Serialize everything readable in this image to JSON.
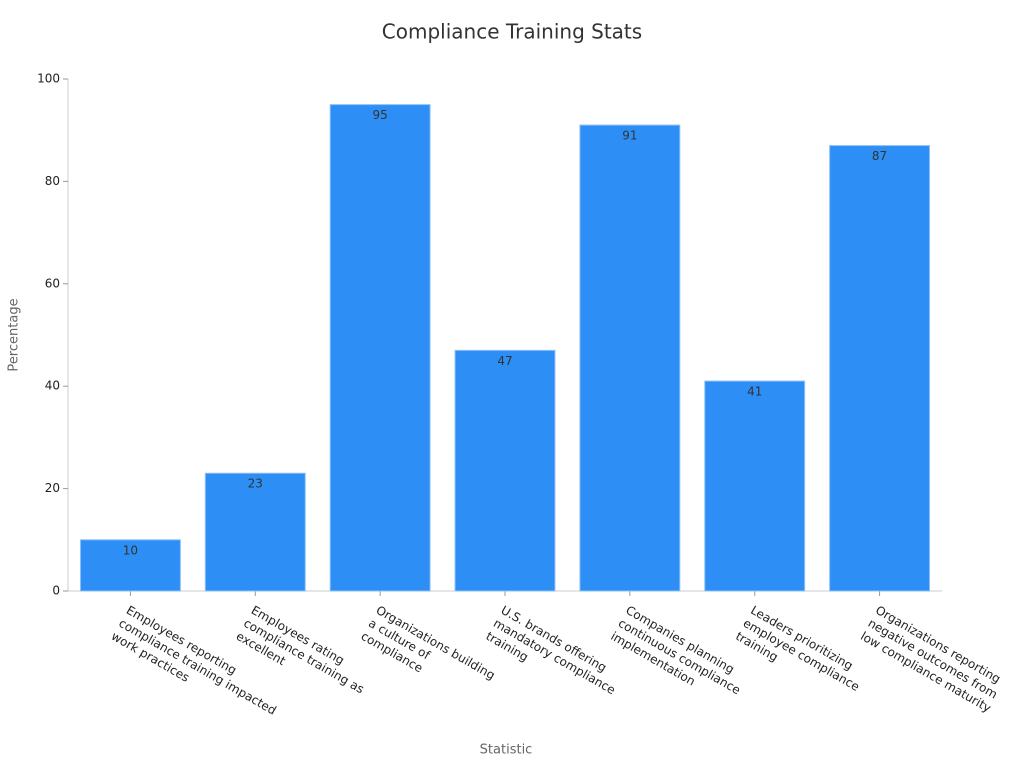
{
  "chart_data": {
    "type": "bar",
    "title": "Compliance Training Stats",
    "x_label": "Statistic",
    "y_label": "Percentage",
    "categories": [
      "Employees reporting\ncompliance training impacted\nwork practices",
      "Employees rating\ncompliance training as\nexcellent",
      "Organizations building\na culture of\ncompliance",
      "U.S. brands offering\nmandatory compliance\ntraining",
      "Companies planning\ncontinuous compliance\nimplementation",
      "Leaders prioritizing\nemployee compliance\ntraining",
      "Organizations reporting\nnegative outcomes from\nlow compliance maturity"
    ],
    "values": [
      10,
      23,
      95,
      47,
      91,
      41,
      87
    ],
    "color": "#2d8ff5",
    "ylim": [
      0,
      100
    ],
    "yticks": [
      0,
      20,
      40,
      60,
      80,
      100
    ],
    "grid": false
  }
}
